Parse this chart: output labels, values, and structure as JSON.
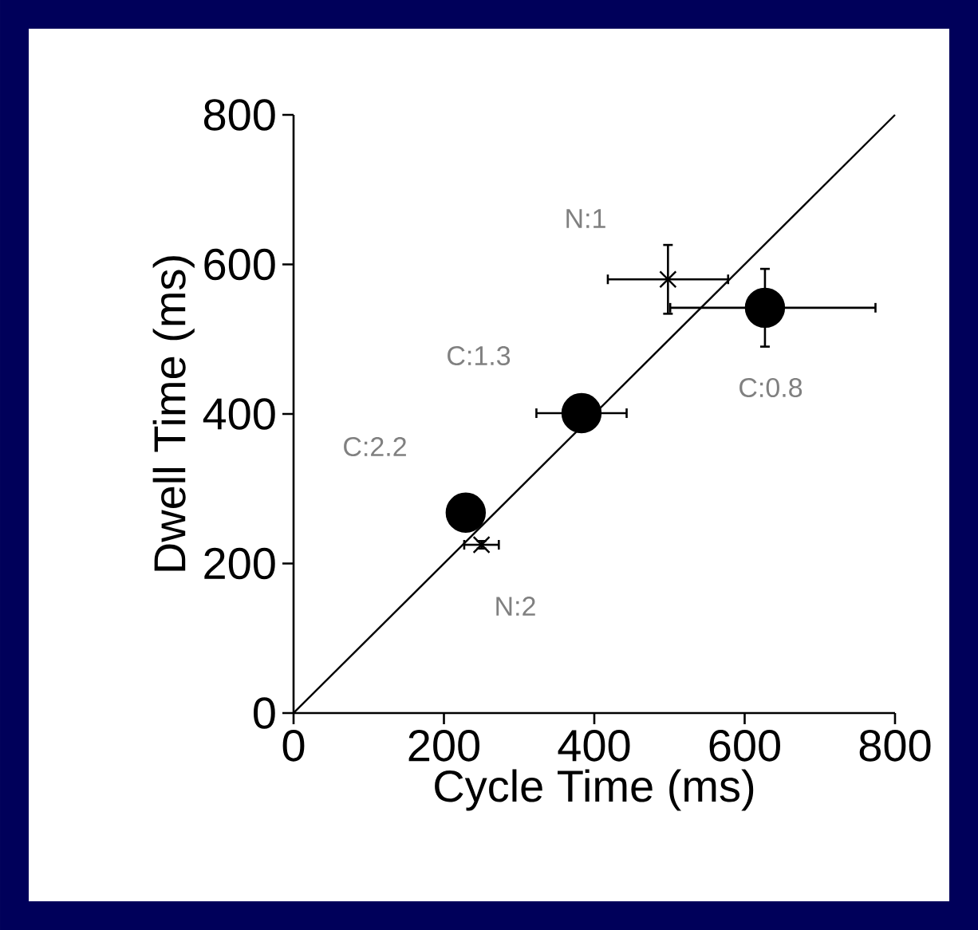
{
  "chart_data": {
    "type": "scatter",
    "xlabel": "Cycle Time (ms)",
    "ylabel": "Dwell Time (ms)",
    "xlim": [
      0,
      800
    ],
    "ylim": [
      0,
      800
    ],
    "xticks": [
      0,
      200,
      400,
      600,
      800
    ],
    "yticks": [
      0,
      200,
      400,
      600,
      800
    ],
    "grid": false,
    "series": [
      {
        "color": "#000000",
        "marker": "circle",
        "x": [
          229,
          383,
          627
        ],
        "values": [
          268,
          401,
          542
        ],
        "xerrors": [
          null,
          60,
          [
            501,
            774
          ]
        ],
        "errors": [
          null,
          null,
          52
        ]
      },
      {
        "color": "#000000",
        "marker": "cross",
        "x": [
          250,
          498
        ],
        "values": [
          225,
          580
        ],
        "xerrors": [
          23,
          80
        ],
        "errors": [
          5,
          46
        ]
      },
      {
        "type": "line",
        "color": "#000000",
        "marker": "none",
        "x": [
          0,
          800
        ],
        "values": [
          0,
          800
        ]
      }
    ],
    "annotations": [
      "N:1",
      "C:1.3",
      "C:2.2",
      "N:2",
      "C:0.8"
    ]
  }
}
